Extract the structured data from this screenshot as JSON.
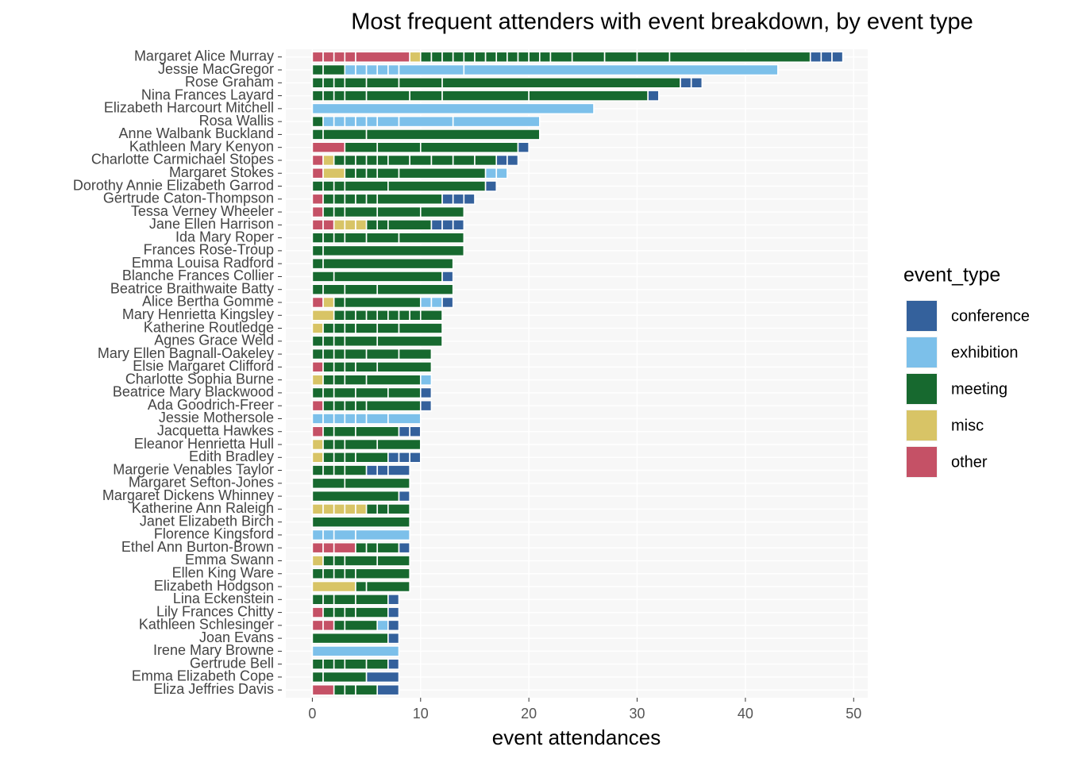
{
  "chart_data": {
    "type": "stacked-segments",
    "title": "Most frequent attenders with event breakdown, by event type",
    "x_label": "event attendances",
    "xlim": [
      -2.45,
      51.3
    ],
    "xticks": [
      0,
      10,
      20,
      30,
      40,
      50
    ],
    "grid": true,
    "legend_title": "event_type",
    "legend_position": "right",
    "series": [
      {
        "name": "conference",
        "color": "#34619c"
      },
      {
        "name": "exhibition",
        "color": "#7cc0ea"
      },
      {
        "name": "meeting",
        "color": "#17692f"
      },
      {
        "name": "misc",
        "color": "#d8c466"
      },
      {
        "name": "other",
        "color": "#c55166"
      }
    ],
    "rows": [
      {
        "name": "Margaret Alice Murray",
        "event_type": [
          "other",
          "other",
          "other",
          "other",
          "other",
          "misc",
          "meeting",
          "meeting",
          "meeting",
          "meeting",
          "meeting",
          "meeting",
          "meeting",
          "meeting",
          "meeting",
          "meeting",
          "meeting",
          "meeting",
          "meeting",
          "meeting",
          "meeting",
          "meeting",
          "meeting",
          "conference",
          "conference",
          "conference"
        ],
        "values": [
          1,
          1,
          1,
          1,
          5,
          1,
          1,
          1,
          1,
          1,
          1,
          1,
          1,
          1,
          1,
          1,
          1,
          1,
          2,
          3,
          3,
          3,
          13,
          1,
          1,
          1
        ]
      },
      {
        "name": "Jessie MacGregor",
        "event_type": [
          "meeting",
          "meeting",
          "exhibition",
          "exhibition",
          "exhibition",
          "exhibition",
          "exhibition",
          "exhibition",
          "exhibition"
        ],
        "values": [
          1,
          2,
          1,
          1,
          1,
          1,
          1,
          6,
          29
        ]
      },
      {
        "name": "Rose Graham",
        "event_type": [
          "meeting",
          "meeting",
          "meeting",
          "meeting",
          "meeting",
          "meeting",
          "meeting",
          "conference",
          "conference"
        ],
        "values": [
          1,
          1,
          1,
          2,
          3,
          4,
          22,
          1,
          1
        ]
      },
      {
        "name": "Nina Frances Layard",
        "event_type": [
          "meeting",
          "meeting",
          "meeting",
          "meeting",
          "meeting",
          "meeting",
          "meeting",
          "meeting",
          "conference"
        ],
        "values": [
          1,
          1,
          1,
          2,
          4,
          3,
          8,
          11,
          1
        ]
      },
      {
        "name": "Elizabeth Harcourt Mitchell",
        "event_type": [
          "exhibition"
        ],
        "values": [
          26
        ]
      },
      {
        "name": "Rosa Wallis",
        "event_type": [
          "meeting",
          "exhibition",
          "exhibition",
          "exhibition",
          "exhibition",
          "exhibition",
          "exhibition",
          "exhibition",
          "exhibition"
        ],
        "values": [
          1,
          1,
          1,
          1,
          1,
          1,
          2,
          5,
          8
        ]
      },
      {
        "name": "Anne Walbank Buckland",
        "event_type": [
          "meeting",
          "meeting",
          "meeting"
        ],
        "values": [
          1,
          4,
          16
        ]
      },
      {
        "name": "Kathleen Mary Kenyon",
        "event_type": [
          "other",
          "meeting",
          "meeting",
          "meeting",
          "conference"
        ],
        "values": [
          3,
          3,
          4,
          9,
          1
        ]
      },
      {
        "name": "Charlotte Carmichael Stopes",
        "event_type": [
          "other",
          "misc",
          "meeting",
          "meeting",
          "meeting",
          "meeting",
          "meeting",
          "meeting",
          "meeting",
          "meeting",
          "meeting",
          "meeting",
          "conference",
          "conference"
        ],
        "values": [
          1,
          1,
          1,
          1,
          1,
          1,
          1,
          2,
          2,
          2,
          2,
          2,
          1,
          1
        ]
      },
      {
        "name": "Margaret Stokes",
        "event_type": [
          "other",
          "misc",
          "meeting",
          "meeting",
          "meeting",
          "meeting",
          "meeting",
          "exhibition",
          "exhibition"
        ],
        "values": [
          1,
          2,
          1,
          1,
          1,
          2,
          8,
          1,
          1
        ]
      },
      {
        "name": "Dorothy Annie Elizabeth Garrod",
        "event_type": [
          "meeting",
          "meeting",
          "meeting",
          "meeting",
          "meeting",
          "conference"
        ],
        "values": [
          1,
          1,
          1,
          4,
          9,
          1
        ]
      },
      {
        "name": "Gertrude Caton-Thompson",
        "event_type": [
          "other",
          "meeting",
          "meeting",
          "meeting",
          "meeting",
          "meeting",
          "meeting",
          "conference",
          "conference",
          "conference"
        ],
        "values": [
          1,
          1,
          1,
          1,
          1,
          1,
          6,
          1,
          1,
          1
        ]
      },
      {
        "name": "Tessa Verney Wheeler",
        "event_type": [
          "other",
          "meeting",
          "meeting",
          "meeting",
          "meeting",
          "meeting"
        ],
        "values": [
          1,
          1,
          1,
          3,
          4,
          4
        ]
      },
      {
        "name": "Jane Ellen Harrison",
        "event_type": [
          "other",
          "other",
          "misc",
          "misc",
          "misc",
          "meeting",
          "meeting",
          "meeting",
          "conference",
          "conference",
          "conference"
        ],
        "values": [
          1,
          1,
          1,
          1,
          1,
          1,
          1,
          4,
          1,
          1,
          1
        ]
      },
      {
        "name": "Ida Mary Roper",
        "event_type": [
          "meeting",
          "meeting",
          "meeting",
          "meeting",
          "meeting",
          "meeting"
        ],
        "values": [
          1,
          1,
          1,
          2,
          3,
          6
        ]
      },
      {
        "name": "Frances Rose-Troup",
        "event_type": [
          "meeting",
          "meeting"
        ],
        "values": [
          1,
          13
        ]
      },
      {
        "name": "Emma Louisa Radford",
        "event_type": [
          "meeting",
          "meeting"
        ],
        "values": [
          1,
          12
        ]
      },
      {
        "name": "Blanche Frances Collier",
        "event_type": [
          "meeting",
          "meeting",
          "conference"
        ],
        "values": [
          2,
          10,
          1
        ]
      },
      {
        "name": "Beatrice Braithwaite Batty",
        "event_type": [
          "meeting",
          "meeting",
          "meeting",
          "meeting"
        ],
        "values": [
          1,
          2,
          3,
          7
        ]
      },
      {
        "name": "Alice Bertha Gomme",
        "event_type": [
          "other",
          "misc",
          "meeting",
          "meeting",
          "exhibition",
          "exhibition",
          "conference"
        ],
        "values": [
          1,
          1,
          1,
          7,
          1,
          1,
          1
        ]
      },
      {
        "name": "Mary Henrietta Kingsley",
        "event_type": [
          "misc",
          "meeting",
          "meeting",
          "meeting",
          "meeting",
          "meeting",
          "meeting",
          "meeting",
          "meeting",
          "meeting"
        ],
        "values": [
          2,
          1,
          1,
          1,
          1,
          1,
          1,
          1,
          1,
          2
        ]
      },
      {
        "name": "Katherine Routledge",
        "event_type": [
          "misc",
          "meeting",
          "meeting",
          "meeting",
          "meeting",
          "meeting",
          "meeting"
        ],
        "values": [
          1,
          1,
          1,
          1,
          2,
          2,
          4
        ]
      },
      {
        "name": "Agnes Grace Weld",
        "event_type": [
          "meeting",
          "meeting",
          "meeting",
          "meeting",
          "meeting"
        ],
        "values": [
          1,
          1,
          1,
          3,
          6
        ]
      },
      {
        "name": "Mary Ellen Bagnall-Oakeley",
        "event_type": [
          "meeting",
          "meeting",
          "meeting",
          "meeting",
          "meeting",
          "meeting"
        ],
        "values": [
          1,
          1,
          1,
          2,
          3,
          3
        ]
      },
      {
        "name": "Elsie Margaret Clifford",
        "event_type": [
          "other",
          "meeting",
          "meeting",
          "meeting",
          "meeting",
          "meeting"
        ],
        "values": [
          1,
          1,
          1,
          1,
          2,
          5
        ]
      },
      {
        "name": "Charlotte Sophia Burne",
        "event_type": [
          "misc",
          "meeting",
          "meeting",
          "meeting",
          "meeting",
          "exhibition"
        ],
        "values": [
          1,
          1,
          1,
          2,
          5,
          1
        ]
      },
      {
        "name": "Beatrice Mary Blackwood",
        "event_type": [
          "meeting",
          "meeting",
          "meeting",
          "meeting",
          "meeting",
          "conference"
        ],
        "values": [
          1,
          1,
          2,
          3,
          3,
          1
        ]
      },
      {
        "name": "Ada Goodrich-Freer",
        "event_type": [
          "other",
          "meeting",
          "meeting",
          "meeting",
          "meeting",
          "meeting",
          "conference"
        ],
        "values": [
          1,
          1,
          1,
          1,
          1,
          5,
          1
        ]
      },
      {
        "name": "Jessie Mothersole",
        "event_type": [
          "exhibition",
          "exhibition",
          "exhibition",
          "exhibition",
          "exhibition",
          "exhibition",
          "exhibition"
        ],
        "values": [
          1,
          1,
          1,
          1,
          1,
          2,
          3
        ]
      },
      {
        "name": "Jacquetta Hawkes",
        "event_type": [
          "other",
          "meeting",
          "meeting",
          "meeting",
          "conference",
          "conference"
        ],
        "values": [
          1,
          1,
          2,
          4,
          1,
          1
        ]
      },
      {
        "name": "Eleanor Henrietta Hull",
        "event_type": [
          "misc",
          "meeting",
          "meeting",
          "meeting",
          "meeting"
        ],
        "values": [
          1,
          1,
          1,
          3,
          4
        ]
      },
      {
        "name": "Edith Bradley",
        "event_type": [
          "misc",
          "meeting",
          "meeting",
          "meeting",
          "meeting",
          "conference",
          "conference",
          "conference"
        ],
        "values": [
          1,
          1,
          1,
          1,
          3,
          1,
          1,
          1
        ]
      },
      {
        "name": "Margerie Venables Taylor",
        "event_type": [
          "meeting",
          "meeting",
          "meeting",
          "meeting",
          "conference",
          "conference",
          "conference"
        ],
        "values": [
          1,
          1,
          1,
          2,
          1,
          1,
          2
        ]
      },
      {
        "name": "Margaret Sefton-Jones",
        "event_type": [
          "meeting",
          "meeting"
        ],
        "values": [
          3,
          6
        ]
      },
      {
        "name": "Margaret Dickens Whinney",
        "event_type": [
          "meeting",
          "conference"
        ],
        "values": [
          8,
          1
        ]
      },
      {
        "name": "Katherine Ann Raleigh",
        "event_type": [
          "misc",
          "misc",
          "misc",
          "misc",
          "misc",
          "meeting",
          "meeting",
          "meeting"
        ],
        "values": [
          1,
          1,
          1,
          1,
          1,
          1,
          1,
          2
        ]
      },
      {
        "name": "Janet Elizabeth Birch",
        "event_type": [
          "meeting"
        ],
        "values": [
          9
        ]
      },
      {
        "name": "Florence Kingsford",
        "event_type": [
          "exhibition",
          "exhibition",
          "exhibition",
          "exhibition"
        ],
        "values": [
          1,
          1,
          2,
          5
        ]
      },
      {
        "name": "Ethel Ann Burton-Brown",
        "event_type": [
          "other",
          "other",
          "other",
          "meeting",
          "meeting",
          "meeting",
          "conference"
        ],
        "values": [
          1,
          1,
          2,
          1,
          1,
          2,
          1
        ]
      },
      {
        "name": "Emma Swann",
        "event_type": [
          "misc",
          "meeting",
          "meeting",
          "meeting",
          "meeting"
        ],
        "values": [
          1,
          1,
          1,
          3,
          3
        ]
      },
      {
        "name": "Ellen King Ware",
        "event_type": [
          "meeting",
          "meeting",
          "meeting",
          "meeting",
          "meeting"
        ],
        "values": [
          1,
          1,
          1,
          1,
          5
        ]
      },
      {
        "name": "Elizabeth Hodgson",
        "event_type": [
          "misc",
          "meeting",
          "meeting"
        ],
        "values": [
          4,
          1,
          4
        ]
      },
      {
        "name": "Lina Eckenstein",
        "event_type": [
          "meeting",
          "meeting",
          "meeting",
          "meeting",
          "conference"
        ],
        "values": [
          1,
          1,
          2,
          3,
          1
        ]
      },
      {
        "name": "Lily Frances Chitty",
        "event_type": [
          "other",
          "meeting",
          "meeting",
          "meeting",
          "meeting",
          "conference"
        ],
        "values": [
          1,
          1,
          1,
          1,
          3,
          1
        ]
      },
      {
        "name": "Kathleen Schlesinger",
        "event_type": [
          "other",
          "other",
          "meeting",
          "meeting",
          "exhibition",
          "conference"
        ],
        "values": [
          1,
          1,
          1,
          3,
          1,
          1
        ]
      },
      {
        "name": "Joan Evans",
        "event_type": [
          "meeting",
          "conference"
        ],
        "values": [
          7,
          1
        ]
      },
      {
        "name": "Irene Mary Browne",
        "event_type": [
          "exhibition"
        ],
        "values": [
          8
        ]
      },
      {
        "name": "Gertrude Bell",
        "event_type": [
          "meeting",
          "meeting",
          "meeting",
          "meeting",
          "meeting",
          "conference"
        ],
        "values": [
          1,
          1,
          1,
          2,
          2,
          1
        ]
      },
      {
        "name": "Emma Elizabeth Cope",
        "event_type": [
          "meeting",
          "meeting",
          "conference"
        ],
        "values": [
          1,
          4,
          3
        ]
      },
      {
        "name": "Eliza Jeffries Davis",
        "event_type": [
          "other",
          "meeting",
          "meeting",
          "meeting",
          "conference"
        ],
        "values": [
          2,
          1,
          1,
          2,
          2
        ]
      }
    ]
  }
}
